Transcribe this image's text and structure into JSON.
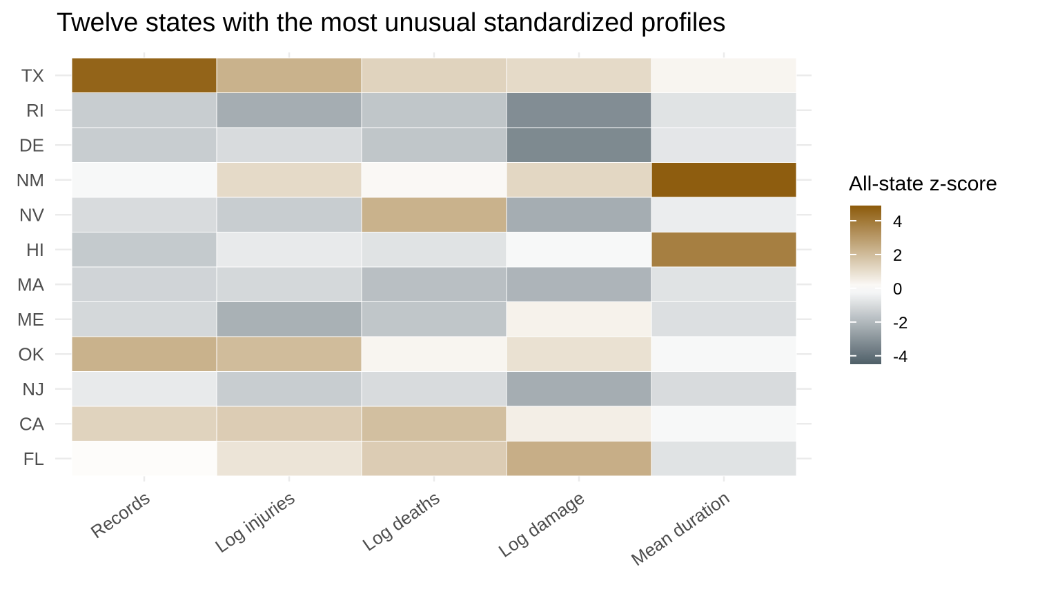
{
  "chart_data": {
    "type": "heatmap",
    "title": "Twelve states with the most unusual standardized profiles",
    "xlabel": "",
    "ylabel": "",
    "x_categories": [
      "Records",
      "Log injuries",
      "Log deaths",
      "Log damage",
      "Mean duration"
    ],
    "y_categories": [
      "TX",
      "RI",
      "DE",
      "NM",
      "NV",
      "HI",
      "MA",
      "ME",
      "OK",
      "NJ",
      "CA",
      "FL"
    ],
    "values": [
      [
        4.6,
        2.3,
        1.3,
        1.1,
        0.3
      ],
      [
        -1.4,
        -2.3,
        -1.6,
        -3.2,
        -0.8
      ],
      [
        -1.4,
        -1.0,
        -1.6,
        -3.3,
        -0.7
      ],
      [
        -0.2,
        1.1,
        0.2,
        1.2,
        4.8
      ],
      [
        -1.0,
        -1.4,
        2.3,
        -2.3,
        -0.5
      ],
      [
        -1.5,
        -0.6,
        -0.8,
        -0.2,
        3.8
      ],
      [
        -1.2,
        -1.1,
        -1.8,
        -2.1,
        -0.8
      ],
      [
        -1.1,
        -2.2,
        -1.6,
        0.4,
        -0.9
      ],
      [
        2.3,
        2.0,
        0.3,
        0.9,
        -0.2
      ],
      [
        -0.6,
        -1.4,
        -1.0,
        -2.3,
        -1.0
      ],
      [
        1.3,
        1.5,
        1.9,
        0.5,
        -0.2
      ],
      [
        0.1,
        0.8,
        1.5,
        2.4,
        -0.8
      ]
    ],
    "color_scale": {
      "low": "#4f5f68",
      "mid": "#ffffff",
      "high": "#8c5a0a",
      "limits": [
        -4.5,
        4.9
      ]
    },
    "legend": {
      "title": "All-state z-score",
      "position": "right",
      "ticks": [
        4,
        2,
        0,
        -2,
        -4
      ]
    },
    "grid": true,
    "colors": {
      "gridline": "#ebebeb",
      "tile_border": "#ffffff"
    }
  }
}
